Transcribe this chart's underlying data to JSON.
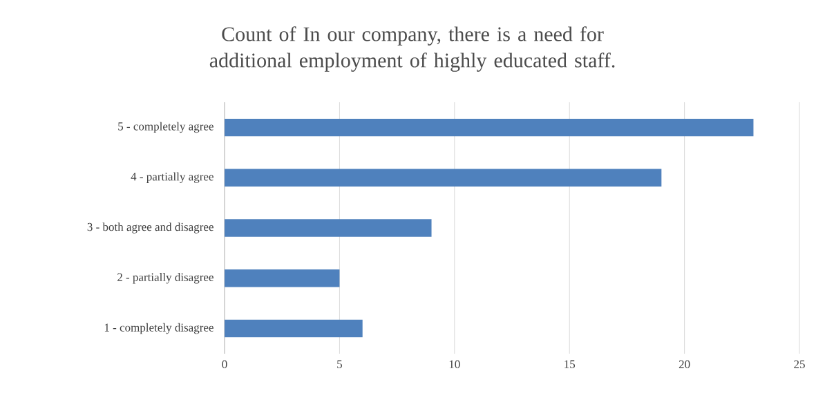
{
  "chart_data": {
    "type": "bar",
    "orientation": "horizontal",
    "title": "Count of In our company, there is a need for additional employment of highly educated staff.",
    "categories": [
      "5 - completely agree",
      "4 - partially agree",
      "3 - both agree and disagree",
      "2 - partially disagree",
      "1 - completely disagree"
    ],
    "values": [
      23,
      19,
      9,
      5,
      6
    ],
    "color": "#4f81bd",
    "xlim": [
      0,
      25
    ],
    "xticks": [
      0,
      5,
      10,
      15,
      20,
      25
    ],
    "grid": "x"
  }
}
